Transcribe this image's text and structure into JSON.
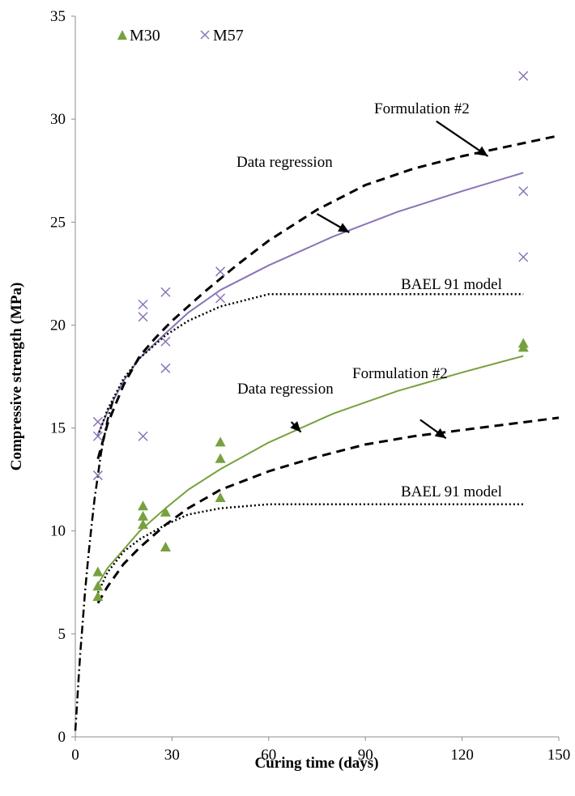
{
  "chart_data": {
    "type": "scatter",
    "xlabel": "Curing time (days)",
    "ylabel": "Compressive strength (MPa)",
    "xlim": [
      0,
      150
    ],
    "ylim": [
      0,
      35
    ],
    "xticks": [
      "0",
      "30",
      "60",
      "90",
      "120",
      "150"
    ],
    "yticks": [
      "0",
      "5",
      "10",
      "15",
      "20",
      "25",
      "30",
      "35"
    ],
    "grid": false,
    "legend_position": "top-left",
    "colors": {
      "m30": "#77a13e",
      "m57": "#8a74b6",
      "model": "#000000"
    },
    "series": [
      {
        "name": "M30",
        "marker": "triangle",
        "x": [
          7,
          7,
          7,
          21,
          21,
          21,
          28,
          28,
          45,
          45,
          45,
          139,
          139
        ],
        "y": [
          6.8,
          7.3,
          8.0,
          10.3,
          10.7,
          11.2,
          9.2,
          10.9,
          11.6,
          13.5,
          14.3,
          18.9,
          19.1
        ]
      },
      {
        "name": "M57",
        "marker": "cross",
        "x": [
          7,
          7,
          7,
          21,
          21,
          21,
          28,
          28,
          28,
          45,
          45,
          139,
          139,
          139
        ],
        "y": [
          12.7,
          14.6,
          15.3,
          14.6,
          20.4,
          21.0,
          17.9,
          19.2,
          21.6,
          21.3,
          22.6,
          23.3,
          26.5,
          32.1
        ]
      }
    ],
    "curves": [
      {
        "group": "M57",
        "kind": "Data regression",
        "style": "solid",
        "x": [
          7,
          10,
          15,
          20,
          28,
          35,
          45,
          60,
          80,
          100,
          120,
          139
        ],
        "y": [
          14.7,
          15.8,
          17.3,
          18.4,
          19.6,
          20.6,
          21.7,
          22.9,
          24.3,
          25.5,
          26.5,
          27.4
        ]
      },
      {
        "group": "M57",
        "kind": "Formulation #2",
        "style": "dashed",
        "x": [
          7,
          10,
          15,
          20,
          25,
          30,
          40,
          50,
          60,
          75,
          90,
          105,
          120,
          135,
          150
        ],
        "y": [
          13.5,
          15.2,
          17.1,
          18.5,
          19.4,
          20.2,
          21.6,
          22.9,
          24.1,
          25.6,
          26.8,
          27.6,
          28.2,
          28.7,
          29.2
        ]
      },
      {
        "group": "M57",
        "kind": "BAEL 91 model",
        "style": "dotted",
        "x": [
          7,
          10,
          15,
          20,
          28,
          35,
          45,
          60,
          90,
          120,
          139
        ],
        "y": [
          14.6,
          15.9,
          17.4,
          18.4,
          19.5,
          20.2,
          20.9,
          21.5,
          21.5,
          21.5,
          21.5
        ]
      },
      {
        "group": "M30",
        "kind": "Data regression",
        "style": "solid",
        "x": [
          7,
          10,
          15,
          20,
          28,
          35,
          45,
          60,
          80,
          100,
          120,
          139
        ],
        "y": [
          7.4,
          8.2,
          9.1,
          10.0,
          11.1,
          12.0,
          13.0,
          14.3,
          15.7,
          16.8,
          17.7,
          18.5
        ]
      },
      {
        "group": "M30",
        "kind": "Formulation #2",
        "style": "dashed",
        "x": [
          7,
          10,
          15,
          20,
          28,
          35,
          45,
          60,
          75,
          90,
          105,
          120,
          135,
          150
        ],
        "y": [
          6.5,
          7.3,
          8.4,
          9.2,
          10.3,
          11.1,
          12.0,
          12.9,
          13.6,
          14.2,
          14.6,
          14.9,
          15.2,
          15.5
        ]
      },
      {
        "group": "M30",
        "kind": "BAEL 91 model",
        "style": "dotted",
        "x": [
          7,
          10,
          15,
          20,
          28,
          35,
          45,
          60,
          90,
          120,
          139
        ],
        "y": [
          7.0,
          8.0,
          9.0,
          9.6,
          10.3,
          10.8,
          11.1,
          11.3,
          11.3,
          11.3,
          11.3
        ]
      },
      {
        "group": "shared",
        "kind": "early-age curve",
        "style": "dash-dot",
        "x": [
          0,
          0.5,
          1,
          1.5,
          2,
          3,
          4,
          5,
          6,
          7,
          8,
          10,
          12
        ],
        "y": [
          0.3,
          1.5,
          2.8,
          4.0,
          5.0,
          7.0,
          8.7,
          10.2,
          11.6,
          12.7,
          13.8,
          15.4,
          16.5
        ]
      }
    ],
    "annotations": [
      {
        "text": "Formulation #2",
        "arrow_from": [
          112,
          29.9
        ],
        "arrow_to": [
          128,
          28.2
        ]
      },
      {
        "text": "Data regression",
        "arrow_from": [
          75,
          25.4
        ],
        "arrow_to": [
          85,
          24.5
        ]
      },
      {
        "text": "BAEL 91 model"
      },
      {
        "text": "Formulation #2",
        "arrow_from": [
          107,
          15.4
        ],
        "arrow_to": [
          115,
          14.5
        ]
      },
      {
        "text": "Data regression",
        "arrow_from": [
          67,
          15.3
        ],
        "arrow_to": [
          70,
          14.8
        ]
      },
      {
        "text": "BAEL 91 model"
      }
    ]
  }
}
